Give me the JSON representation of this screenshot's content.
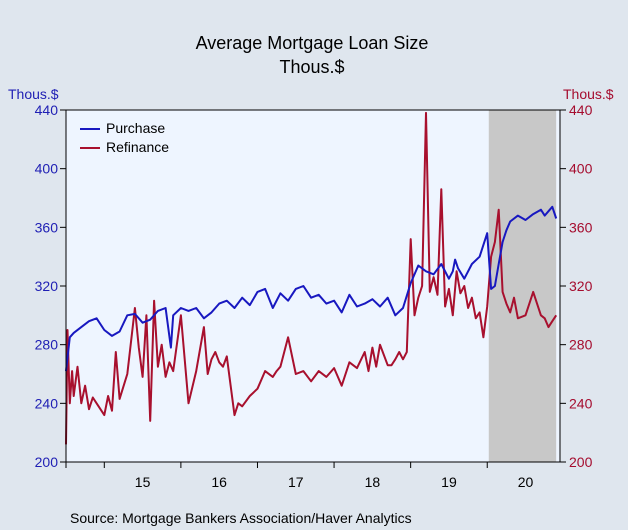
{
  "chart_data": {
    "type": "line",
    "title": "Average Mortgage Loan Size",
    "subtitle": "Thous.$",
    "left_axis": {
      "label": "Thous.$",
      "ticks": [
        440,
        400,
        360,
        320,
        280,
        240,
        200
      ],
      "range": [
        200,
        440
      ],
      "color": "#1f1fb4"
    },
    "right_axis": {
      "label": "Thous.$",
      "ticks": [
        440,
        400,
        360,
        320,
        280,
        240,
        200
      ],
      "range": [
        200,
        440
      ],
      "color": "#a50c2e"
    },
    "x_axis": {
      "tick_labels": [
        "15",
        "16",
        "17",
        "18",
        "19",
        "20"
      ],
      "range": [
        2014.5,
        2020.95
      ]
    },
    "grid": false,
    "legend_position": "top-left",
    "shaded_region": {
      "start": 2020.02,
      "end": 2020.9,
      "color": "#c8c8c8"
    },
    "plot_background": "#eef5ff",
    "series": [
      {
        "name": "Purchase",
        "color": "#1818c0",
        "x": [
          2014.5,
          2014.55,
          2014.6,
          2014.7,
          2014.8,
          2014.9,
          2015.0,
          2015.1,
          2015.2,
          2015.3,
          2015.4,
          2015.5,
          2015.6,
          2015.7,
          2015.8,
          2015.87,
          2015.9,
          2016.0,
          2016.1,
          2016.2,
          2016.3,
          2016.4,
          2016.5,
          2016.6,
          2016.7,
          2016.8,
          2016.9,
          2017.0,
          2017.1,
          2017.2,
          2017.3,
          2017.4,
          2017.5,
          2017.6,
          2017.7,
          2017.8,
          2017.9,
          2018.0,
          2018.1,
          2018.2,
          2018.3,
          2018.4,
          2018.5,
          2018.6,
          2018.7,
          2018.8,
          2018.9,
          2019.0,
          2019.1,
          2019.2,
          2019.3,
          2019.4,
          2019.5,
          2019.55,
          2019.58,
          2019.62,
          2019.7,
          2019.8,
          2019.9,
          2020.0,
          2020.05,
          2020.1,
          2020.15,
          2020.2,
          2020.25,
          2020.3,
          2020.4,
          2020.5,
          2020.6,
          2020.7,
          2020.75,
          2020.8,
          2020.85,
          2020.9
        ],
        "values": [
          262,
          285,
          288,
          292,
          296,
          298,
          290,
          286,
          289,
          300,
          301,
          295,
          297,
          303,
          305,
          278,
          300,
          305,
          303,
          305,
          298,
          302,
          308,
          310,
          305,
          312,
          307,
          316,
          318,
          305,
          315,
          310,
          318,
          320,
          312,
          314,
          308,
          310,
          302,
          314,
          306,
          308,
          311,
          306,
          312,
          300,
          305,
          322,
          334,
          330,
          328,
          335,
          325,
          330,
          338,
          332,
          325,
          335,
          340,
          356,
          318,
          320,
          335,
          350,
          358,
          364,
          368,
          365,
          369,
          372,
          368,
          371,
          374,
          366
        ]
      },
      {
        "name": "Refinance",
        "color": "#a8102e",
        "x": [
          2014.5,
          2014.52,
          2014.55,
          2014.58,
          2014.6,
          2014.65,
          2014.7,
          2014.75,
          2014.8,
          2014.85,
          2014.9,
          2015.0,
          2015.05,
          2015.1,
          2015.15,
          2015.2,
          2015.3,
          2015.4,
          2015.45,
          2015.5,
          2015.55,
          2015.6,
          2015.65,
          2015.7,
          2015.75,
          2015.8,
          2015.85,
          2015.9,
          2016.0,
          2016.1,
          2016.2,
          2016.3,
          2016.35,
          2016.4,
          2016.45,
          2016.5,
          2016.55,
          2016.6,
          2016.7,
          2016.75,
          2016.8,
          2016.9,
          2017.0,
          2017.1,
          2017.2,
          2017.25,
          2017.3,
          2017.4,
          2017.5,
          2017.6,
          2017.7,
          2017.8,
          2017.9,
          2018.0,
          2018.1,
          2018.2,
          2018.3,
          2018.4,
          2018.45,
          2018.5,
          2018.55,
          2018.6,
          2018.7,
          2018.75,
          2018.8,
          2018.85,
          2018.9,
          2018.95,
          2019.0,
          2019.05,
          2019.1,
          2019.15,
          2019.2,
          2019.25,
          2019.3,
          2019.35,
          2019.4,
          2019.45,
          2019.5,
          2019.55,
          2019.6,
          2019.65,
          2019.7,
          2019.75,
          2019.8,
          2019.85,
          2019.9,
          2019.95,
          2020.0,
          2020.05,
          2020.1,
          2020.15,
          2020.2,
          2020.25,
          2020.3,
          2020.35,
          2020.4,
          2020.5,
          2020.6,
          2020.7,
          2020.75,
          2020.8,
          2020.85,
          2020.9
        ],
        "values": [
          212,
          290,
          240,
          262,
          245,
          265,
          240,
          252,
          236,
          244,
          240,
          232,
          245,
          235,
          275,
          243,
          260,
          305,
          278,
          258,
          300,
          228,
          310,
          265,
          280,
          258,
          268,
          262,
          300,
          240,
          262,
          292,
          260,
          270,
          275,
          268,
          265,
          272,
          232,
          240,
          238,
          245,
          250,
          262,
          258,
          262,
          265,
          285,
          260,
          262,
          255,
          262,
          258,
          264,
          252,
          268,
          264,
          275,
          262,
          278,
          265,
          280,
          266,
          266,
          270,
          275,
          270,
          275,
          352,
          300,
          312,
          320,
          438,
          316,
          326,
          314,
          386,
          306,
          318,
          300,
          330,
          315,
          320,
          305,
          312,
          298,
          302,
          285,
          306,
          340,
          350,
          372,
          316,
          308,
          302,
          312,
          298,
          300,
          316,
          300,
          298,
          292,
          296,
          300
        ]
      }
    ],
    "source": "Source:  Mortgage Bankers Association/Haver Analytics"
  }
}
